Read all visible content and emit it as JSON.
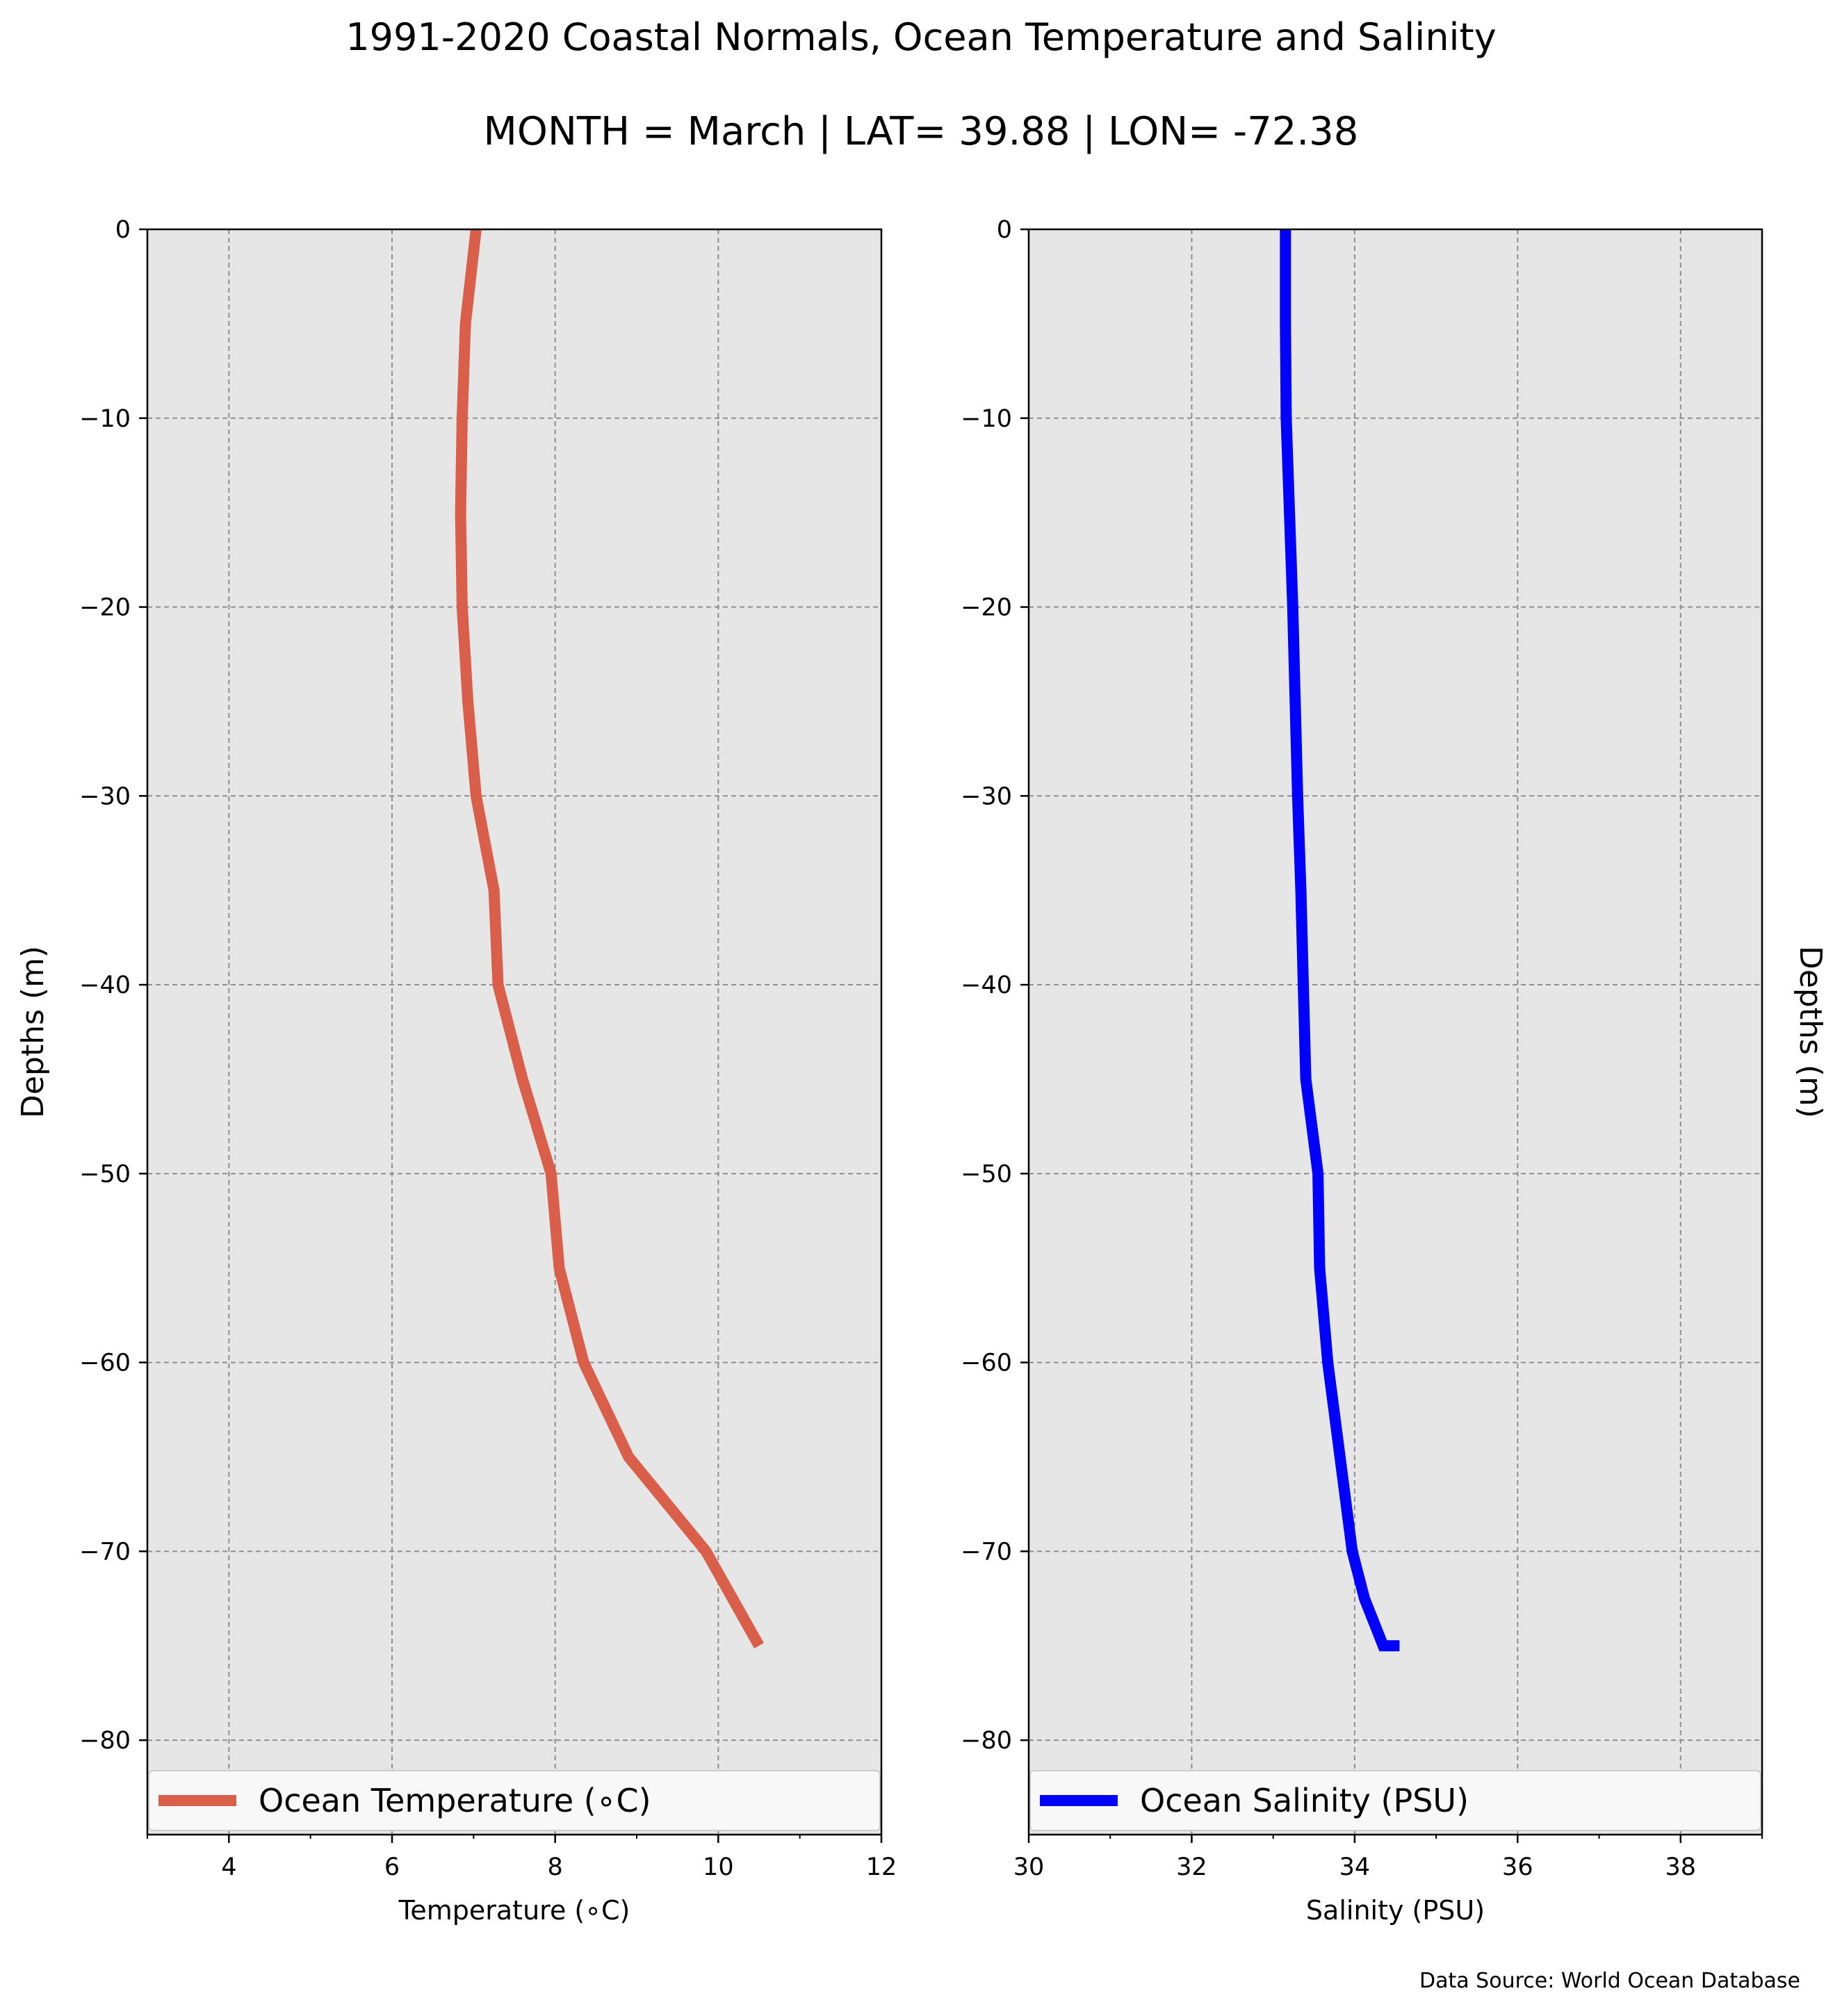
{
  "title": "1991-2020 Coastal Normals, Ocean Temperature and Salinity",
  "subtitle": "MONTH = March | LAT= 39.88 | LON= -72.38",
  "source_note": "Data Source: World Ocean Database",
  "colors": {
    "temperature_line": "#d95f4b",
    "salinity_line": "#0000ff",
    "plot_background": "#e6e6e6",
    "grid": "#8f8f8f",
    "legend_background": "#f8f8f8"
  },
  "chart_data": [
    {
      "type": "line",
      "xlabel": "Temperature ($^\\circ$C)",
      "xlabel_display": "Temperature (∘C)",
      "ylabel": "Depths (m)",
      "xlim": [
        3,
        12
      ],
      "ylim": [
        -85,
        0
      ],
      "xticks": [
        4,
        6,
        8,
        10,
        12
      ],
      "xtick_labels": [
        "4",
        "6",
        "8",
        "10",
        "12"
      ],
      "yticks": [
        0,
        -10,
        -20,
        -30,
        -40,
        -50,
        -60,
        -70,
        -80
      ],
      "ytick_labels": [
        "0",
        "−10",
        "−20",
        "−30",
        "−40",
        "−50",
        "−60",
        "−70",
        "−80"
      ],
      "grid": true,
      "legend_position": "bottom",
      "series": [
        {
          "name": "Ocean Temperature (∘C)",
          "x": [
            7.03,
            6.9,
            6.86,
            6.84,
            6.86,
            6.93,
            7.03,
            7.25,
            7.3,
            7.6,
            7.95,
            8.05,
            8.35,
            8.9,
            9.85,
            10.5
          ],
          "y": [
            0,
            -5,
            -10,
            -15,
            -20,
            -25,
            -30,
            -35,
            -40,
            -45,
            -50,
            -55,
            -60,
            -65,
            -70,
            -75
          ]
        }
      ]
    },
    {
      "type": "line",
      "xlabel": "Salinity (PSU)",
      "ylabel": "Depths (m)",
      "xlim": [
        30,
        39
      ],
      "ylim": [
        -85,
        0
      ],
      "xticks": [
        30,
        32,
        34,
        36,
        38
      ],
      "xtick_labels": [
        "30",
        "32",
        "34",
        "36",
        "38"
      ],
      "yticks": [
        0,
        -10,
        -20,
        -30,
        -40,
        -50,
        -60,
        -70,
        -80
      ],
      "ytick_labels": [
        "0",
        "−10",
        "−20",
        "−30",
        "−40",
        "−50",
        "−60",
        "−70",
        "−80"
      ],
      "grid": true,
      "legend_position": "bottom",
      "series": [
        {
          "name": "Ocean Salinity (PSU)",
          "x": [
            33.15,
            33.15,
            33.16,
            33.2,
            33.24,
            33.27,
            33.3,
            33.34,
            33.37,
            33.4,
            33.55,
            33.57,
            33.67,
            33.82,
            33.97,
            34.12,
            34.35,
            34.55
          ],
          "y": [
            0,
            -5,
            -10,
            -15,
            -20,
            -25,
            -30,
            -35,
            -40,
            -45,
            -50,
            -55,
            -60,
            -65,
            -70,
            -72.5,
            -75,
            -75
          ]
        }
      ]
    }
  ]
}
